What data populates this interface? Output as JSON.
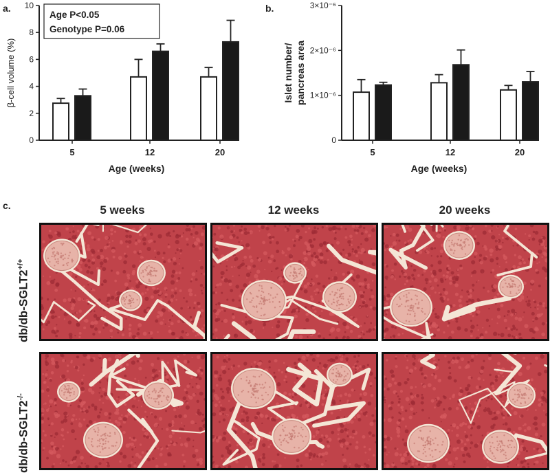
{
  "panels": {
    "a": "a.",
    "b": "b.",
    "c": "c."
  },
  "colors": {
    "control_bar": "#ffffff",
    "knockout_bar": "#1a1a1a",
    "axis": "#222222",
    "tissue": "#c0434a",
    "islet": "#e7b3a8",
    "background_tissue": "#f4e6d6"
  },
  "chart_data": [
    {
      "type": "bar",
      "ylabel": "β-cell volume (%)",
      "xlabel": "Age (weeks)",
      "categories": [
        "5",
        "12",
        "20"
      ],
      "ylim": [
        0,
        10
      ],
      "yticks": [
        "0",
        "2",
        "4",
        "6",
        "8",
        "10"
      ],
      "series": [
        {
          "name": "",
          "style": "open",
          "values": [
            2.75,
            4.7,
            4.7
          ],
          "errors": [
            0.35,
            1.3,
            0.7
          ]
        },
        {
          "name": "",
          "style": "filled",
          "values": [
            3.3,
            6.6,
            7.3
          ],
          "errors": [
            0.5,
            0.55,
            1.6
          ]
        }
      ],
      "annotation_lines": [
        "Age P<0.05",
        "Genotype P=0.06"
      ],
      "grid": false
    },
    {
      "type": "bar",
      "ylabel_lines": [
        "Islet number/",
        "pancreas area"
      ],
      "xlabel": "Age (weeks)",
      "categories": [
        "5",
        "12",
        "20"
      ],
      "ylim": [
        0,
        3e-06
      ],
      "yticks": [
        "0",
        "1×10⁻⁶",
        "2×10⁻⁶",
        "3×10⁻⁶"
      ],
      "series": [
        {
          "name": "",
          "style": "open",
          "values": [
            1.07e-06,
            1.28e-06,
            1.12e-06
          ],
          "errors": [
            2.8e-07,
            1.8e-07,
            1e-07
          ]
        },
        {
          "name": "",
          "style": "filled",
          "values": [
            1.23e-06,
            1.68e-06,
            1.3e-06
          ],
          "errors": [
            6e-08,
            3.3e-07,
            2.3e-07
          ]
        }
      ],
      "grid": false
    }
  ],
  "micrographs": {
    "column_headers": [
      "5 weeks",
      "12 weeks",
      "20 weeks"
    ],
    "row_labels": [
      {
        "base": "db/db-SGLT2",
        "sup": "+/+"
      },
      {
        "base": "db/db-SGLT2",
        "sup": "-/-"
      }
    ]
  }
}
